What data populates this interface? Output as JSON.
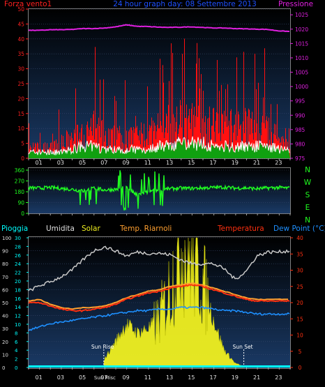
{
  "top": {
    "title": "24 hour graph day: 08 Settembre 2013",
    "left_label": "Forza vento1",
    "right_label": "Pressione",
    "left_ticks": [
      0,
      5,
      10,
      15,
      20,
      25,
      30,
      35,
      40,
      45,
      50
    ],
    "right_ticks": [
      975,
      980,
      985,
      990,
      995,
      1000,
      1005,
      1010,
      1015,
      1020,
      1025
    ]
  },
  "mid": {
    "ticks": [
      0,
      90,
      180,
      270,
      360
    ],
    "compass": [
      "N",
      "W",
      "S",
      "E",
      "N"
    ]
  },
  "bottom": {
    "labels": {
      "rain": "Pioggia",
      "humidity": "Umidita",
      "solar": "Solar",
      "temp_riarnoli": "Temp. Riarnoli",
      "temperature": "Temperatura",
      "dewpoint": "Dew Point (°C)"
    },
    "humidity_ticks": [
      0,
      10,
      20,
      30,
      40,
      50,
      60,
      70,
      80,
      90,
      100
    ],
    "left2_ticks": [
      0,
      2,
      4,
      6,
      8,
      10,
      12,
      14,
      16,
      18,
      20,
      22,
      24,
      26,
      28,
      30
    ],
    "right_ticks": [
      0,
      5,
      10,
      15,
      20,
      25,
      30,
      35,
      40
    ],
    "sun_rise_label": "Sun Rise",
    "sun_set_label": "Sun Set",
    "sun_misc_label": "Sun Misc"
  },
  "x_ticks": [
    "01",
    "03",
    "05",
    "07",
    "09",
    "11",
    "13",
    "15",
    "17",
    "19",
    "21",
    "23"
  ],
  "colors": {
    "pressure": "#e020e0",
    "gust": "#ff1010",
    "wind": "#ffffff",
    "wind_fill": "#10a010",
    "direction": "#20ff20",
    "humidity": "#c8c8c8",
    "temperature": "#ff3010",
    "temp_riarnoli": "#ffa030",
    "dewpoint": "#1e90ff",
    "solar": "#f0f020",
    "rain": "#00ffff"
  },
  "chart_data": [
    {
      "type": "line",
      "name": "wind-pressure",
      "x": [
        0,
        1,
        2,
        3,
        4,
        5,
        6,
        7,
        8,
        9,
        10,
        11,
        12,
        13,
        14,
        15,
        16,
        17,
        18,
        19,
        20,
        21,
        22,
        23,
        24
      ],
      "series": [
        {
          "name": "Pressione",
          "axis": "right",
          "values": [
            1019.6,
            1019.6,
            1019.8,
            1019.8,
            1019.9,
            1020.2,
            1020.2,
            1020.4,
            1020.8,
            1021.5,
            1021.0,
            1020.9,
            1020.7,
            1020.6,
            1020.7,
            1020.8,
            1020.6,
            1020.4,
            1020.4,
            1020.2,
            1020.1,
            1020.0,
            1019.9,
            1019.4,
            1019.2
          ]
        },
        {
          "name": "Forza vento1",
          "axis": "left",
          "values": [
            7,
            7,
            7,
            9,
            12,
            13,
            17,
            13,
            12,
            12,
            13,
            14,
            16,
            17,
            18,
            19,
            19,
            18,
            17,
            16,
            18,
            17,
            15,
            13,
            11
          ]
        },
        {
          "name": "vento",
          "axis": "left",
          "values": [
            2,
            2,
            2,
            2,
            3,
            4,
            4,
            3,
            3,
            3,
            3,
            3,
            4,
            4,
            5,
            5,
            5,
            4,
            4,
            4,
            4,
            4,
            4,
            3,
            3
          ]
        }
      ],
      "ylim_left": [
        0,
        50
      ],
      "ylim_right": [
        975,
        1027
      ]
    },
    {
      "type": "line",
      "name": "direction",
      "x": [
        0,
        1,
        2,
        3,
        4,
        5,
        6,
        7,
        8,
        9,
        10,
        11,
        12,
        13,
        14,
        15,
        16,
        17,
        18,
        19,
        20,
        21,
        22,
        23,
        24
      ],
      "values": [
        212,
        210,
        215,
        208,
        200,
        185,
        210,
        195,
        200,
        215,
        150,
        180,
        195,
        205,
        210,
        208,
        212,
        215,
        218,
        210,
        212,
        205,
        212,
        215,
        210
      ],
      "ylim": [
        0,
        360
      ]
    },
    {
      "type": "line",
      "name": "temperature-humidity",
      "x": [
        0,
        1,
        2,
        3,
        4,
        5,
        6,
        7,
        8,
        9,
        10,
        11,
        12,
        13,
        14,
        15,
        16,
        17,
        18,
        19,
        20,
        21,
        22,
        23,
        24
      ],
      "series": [
        {
          "name": "Umidita",
          "axis": "humidity",
          "values": [
            59,
            63,
            66,
            70,
            75,
            83,
            90,
            93,
            90,
            86,
            89,
            88,
            88,
            87,
            83,
            80,
            80,
            80,
            76,
            68,
            74,
            86,
            89,
            89,
            90
          ]
        },
        {
          "name": "Temperatura",
          "axis": "right",
          "values": [
            20,
            20,
            19,
            18,
            17.5,
            17.5,
            18,
            18.5,
            19.5,
            21,
            22,
            23,
            23.5,
            24.5,
            25,
            25.5,
            25,
            24,
            23,
            22,
            21,
            20.5,
            20.5,
            20.5,
            20.5
          ]
        },
        {
          "name": "Temp. Riarnoli",
          "axis": "right",
          "values": [
            20.5,
            21,
            19.5,
            18.5,
            18,
            18.5,
            18.5,
            19,
            20,
            21.5,
            22.5,
            23.5,
            24,
            25,
            25.5,
            26,
            25.5,
            24.5,
            23.5,
            22.5,
            21.5,
            21,
            21,
            21,
            21
          ]
        },
        {
          "name": "Dew Point (°C)",
          "axis": "right",
          "values": [
            11.5,
            12.5,
            13.5,
            14,
            14.5,
            15,
            15.5,
            16,
            16.5,
            17,
            17.5,
            17.5,
            18,
            18,
            18.5,
            18.5,
            18.5,
            18,
            17.5,
            17.5,
            17,
            16.5,
            16.5,
            16.5,
            16.5
          ]
        },
        {
          "name": "Solar",
          "axis": "solar",
          "values": [
            0,
            0,
            0,
            0,
            0,
            0,
            0.2,
            2,
            6,
            10,
            8,
            9,
            11,
            18,
            28,
            25,
            20,
            11,
            4,
            1,
            0,
            0,
            0,
            0,
            0
          ]
        },
        {
          "name": "Pioggia",
          "axis": "humidity",
          "values": [
            0,
            0,
            0,
            0,
            0,
            0,
            0,
            0,
            0,
            0,
            0,
            0,
            0,
            0,
            0,
            0,
            0,
            0,
            0,
            0,
            0,
            0,
            0,
            0,
            0
          ]
        }
      ],
      "ylim_humidity": [
        0,
        100
      ],
      "ylim_right": [
        0,
        40
      ],
      "ylim_solar": [
        0,
        30
      ],
      "sun_rise_hour": 6.9,
      "sun_set_hour": 19.75
    }
  ]
}
